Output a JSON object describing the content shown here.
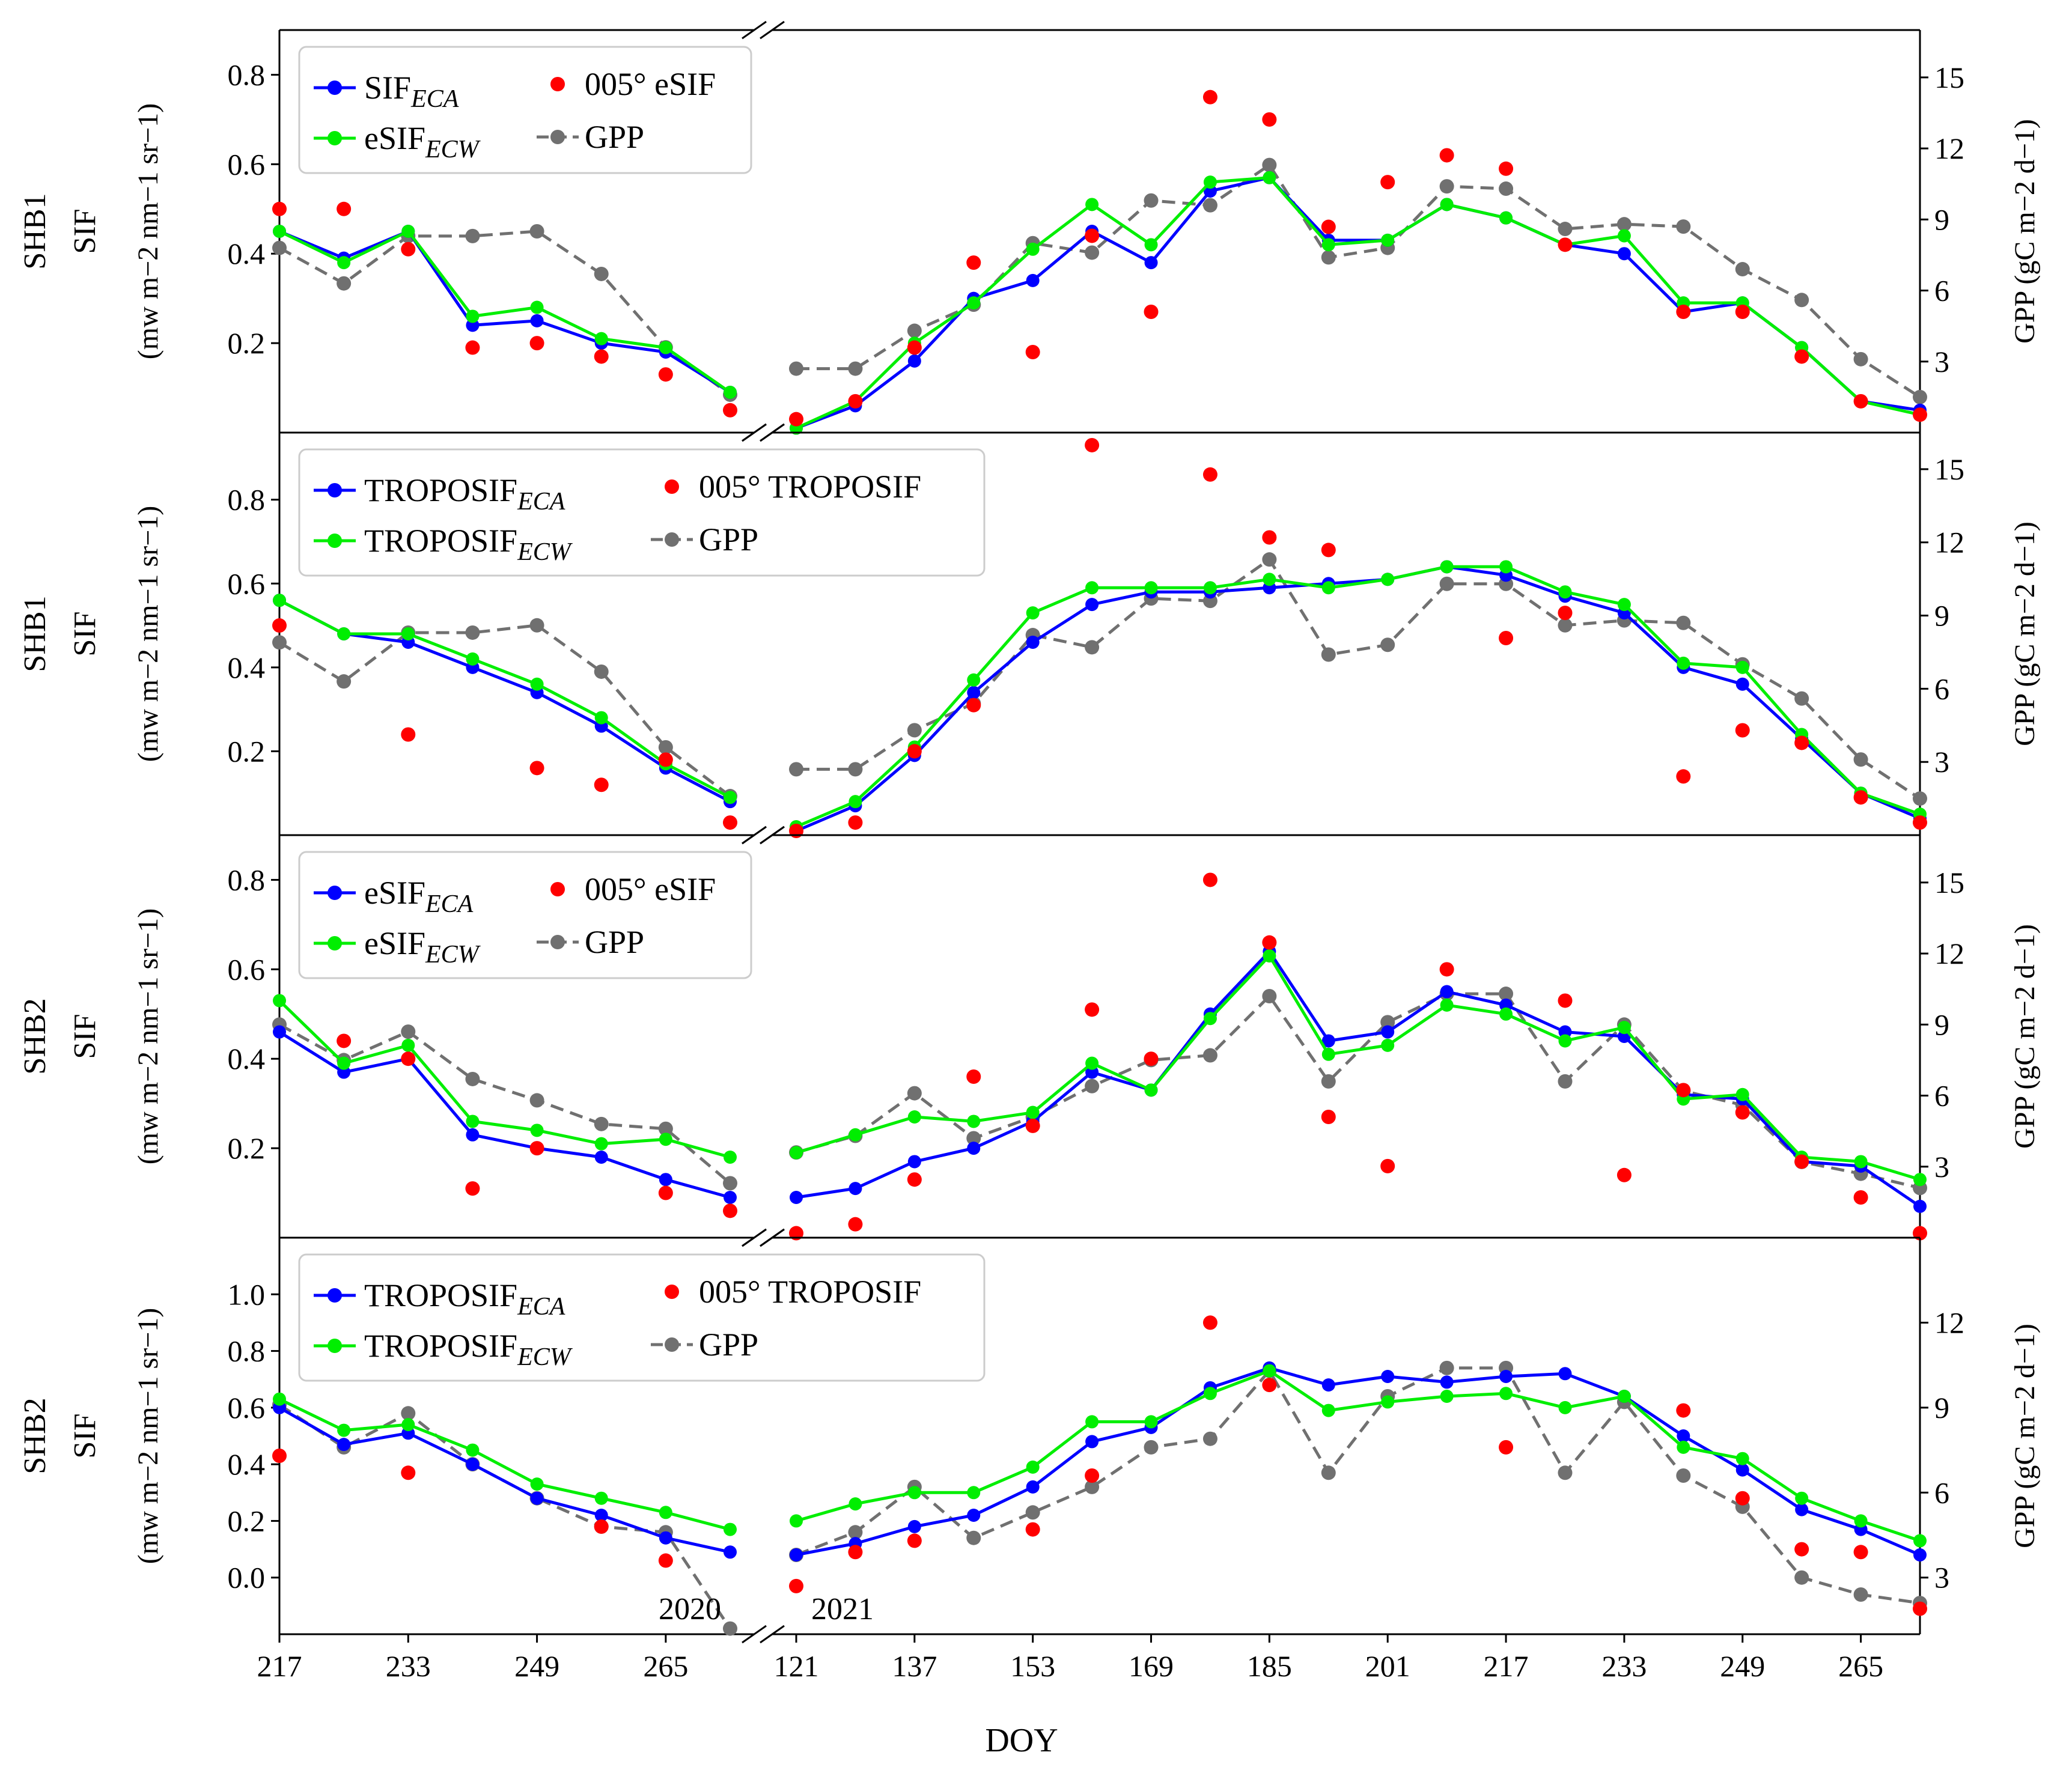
{
  "figure": {
    "x_axis_label": "DOY",
    "break_year_left": "2020",
    "break_year_right": "2021",
    "x_ticks_left": [
      "217",
      "233",
      "249",
      "265"
    ],
    "x_ticks_right": [
      "121",
      "137",
      "153",
      "169",
      "185",
      "201",
      "217",
      "233",
      "249",
      "265"
    ],
    "colors": {
      "eca": "#0000ff",
      "ecw": "#00ee00",
      "ref": "#ff0000",
      "gpp": "#707070"
    }
  },
  "chart_data": [
    {
      "type": "line",
      "panel_label_1": "SHB1",
      "panel_label_2": "SIF",
      "ylabel_left": "(mw m−2 nm−1 sr−1)",
      "ylabel_right": "GPP (gC m−2 d−1)",
      "ylim": [
        0.0,
        0.9
      ],
      "y2lim": [
        0.0,
        17.0
      ],
      "yticks": [
        "0.2",
        "0.4",
        "0.6",
        "0.8"
      ],
      "y2ticks": [
        "3",
        "6",
        "9",
        "12",
        "15"
      ],
      "legend": {
        "eca_base": "SIF",
        "eca_sub": "ECA",
        "ecw_base": "eSIF",
        "ecw_sub": "ECW",
        "ref": "005° eSIF",
        "gpp": "GPP"
      },
      "x_2020": [
        217,
        225,
        233,
        241,
        249,
        257,
        265,
        273
      ],
      "x_2021": [
        121,
        129,
        137,
        145,
        153,
        161,
        169,
        177,
        185,
        193,
        201,
        209,
        217,
        225,
        233,
        241,
        249,
        257,
        265,
        273
      ],
      "series": [
        {
          "name": "SIF ECA",
          "values_2020": [
            0.45,
            0.39,
            0.45,
            0.24,
            0.25,
            0.2,
            0.18,
            0.09
          ],
          "values_2021": [
            0.01,
            0.06,
            0.16,
            0.3,
            0.34,
            0.45,
            0.38,
            0.54,
            0.57,
            0.43,
            0.43,
            0.51,
            0.48,
            0.42,
            0.4,
            0.27,
            0.29,
            0.19,
            0.07,
            0.05
          ]
        },
        {
          "name": "eSIF ECW",
          "values_2020": [
            0.45,
            0.38,
            0.45,
            0.26,
            0.28,
            0.21,
            0.19,
            0.09
          ],
          "values_2021": [
            0.01,
            0.07,
            0.2,
            0.29,
            0.41,
            0.51,
            0.42,
            0.56,
            0.57,
            0.42,
            0.43,
            0.51,
            0.48,
            0.42,
            0.44,
            0.29,
            0.29,
            0.19,
            0.07,
            0.04
          ]
        },
        {
          "name": "005° eSIF",
          "values_2020": [
            0.5,
            0.5,
            0.41,
            0.19,
            0.2,
            0.17,
            0.13,
            0.05
          ],
          "values_2021": [
            0.03,
            0.07,
            0.19,
            0.38,
            0.18,
            0.44,
            0.27,
            0.75,
            0.7,
            0.46,
            0.56,
            0.62,
            0.59,
            0.42,
            null,
            0.27,
            0.27,
            0.17,
            0.07,
            0.04
          ]
        },
        {
          "name": "GPP",
          "values_2020": [
            7.8,
            6.3,
            8.3,
            8.3,
            8.5,
            6.7,
            3.6,
            1.6
          ],
          "values_2021": [
            2.7,
            2.7,
            4.3,
            5.4,
            8.0,
            7.6,
            9.8,
            9.6,
            11.3,
            7.4,
            7.8,
            10.4,
            10.3,
            8.6,
            8.8,
            8.7,
            6.9,
            5.6,
            3.1,
            1.5
          ]
        }
      ]
    },
    {
      "type": "line",
      "panel_label_1": "SHB1",
      "panel_label_2": "SIF",
      "ylabel_left": "(mw m−2 nm−1 sr−1)",
      "ylabel_right": "GPP (gC m−2 d−1)",
      "ylim": [
        0.0,
        0.96
      ],
      "y2lim": [
        0.0,
        16.5
      ],
      "yticks": [
        "0.2",
        "0.4",
        "0.6",
        "0.8"
      ],
      "y2ticks": [
        "3",
        "6",
        "9",
        "12",
        "15"
      ],
      "legend": {
        "eca_base": "TROPOSIF",
        "eca_sub": "ECA",
        "ecw_base": "TROPOSIF",
        "ecw_sub": "ECW",
        "ref": "005° TROPOSIF",
        "gpp": "GPP"
      },
      "x_2020": [
        217,
        225,
        233,
        241,
        249,
        257,
        265,
        273
      ],
      "x_2021": [
        121,
        129,
        137,
        145,
        153,
        161,
        169,
        177,
        185,
        193,
        201,
        209,
        217,
        225,
        233,
        241,
        249,
        257,
        265,
        273
      ],
      "series": [
        {
          "name": "TROPOSIF ECA",
          "values_2020": [
            0.56,
            0.48,
            0.46,
            0.4,
            0.34,
            0.26,
            0.16,
            0.08
          ],
          "values_2021": [
            0.01,
            0.07,
            0.19,
            0.34,
            0.46,
            0.55,
            0.58,
            0.58,
            0.59,
            0.6,
            0.61,
            0.64,
            0.62,
            0.57,
            0.53,
            0.4,
            0.36,
            0.23,
            0.1,
            0.04
          ]
        },
        {
          "name": "TROPOSIF ECW",
          "values_2020": [
            0.56,
            0.48,
            0.48,
            0.42,
            0.36,
            0.28,
            0.17,
            0.09
          ],
          "values_2021": [
            0.02,
            0.08,
            0.21,
            0.37,
            0.53,
            0.59,
            0.59,
            0.59,
            0.61,
            0.59,
            0.61,
            0.64,
            0.64,
            0.58,
            0.55,
            0.41,
            0.4,
            0.24,
            0.1,
            0.05
          ]
        },
        {
          "name": "005° TROPOSIF",
          "values_2020": [
            0.5,
            null,
            0.24,
            null,
            0.16,
            0.12,
            0.18,
            0.03
          ],
          "values_2021": [
            0.01,
            0.03,
            0.2,
            0.31,
            null,
            0.93,
            null,
            0.86,
            0.71,
            0.68,
            null,
            null,
            0.47,
            0.53,
            null,
            0.14,
            0.25,
            0.22,
            0.09,
            0.03
          ]
        },
        {
          "name": "GPP",
          "values_2020": [
            7.9,
            6.3,
            8.3,
            8.3,
            8.6,
            6.7,
            3.6,
            1.6
          ],
          "values_2021": [
            2.7,
            2.7,
            4.3,
            5.4,
            8.2,
            7.7,
            9.7,
            9.6,
            11.3,
            7.4,
            7.8,
            10.3,
            10.3,
            8.6,
            8.8,
            8.7,
            7.0,
            5.6,
            3.1,
            1.5
          ]
        }
      ]
    },
    {
      "type": "line",
      "panel_label_1": "SHB2",
      "panel_label_2": "SIF",
      "ylabel_left": "(mw m−2 nm−1 sr−1)",
      "ylabel_right": "GPP (gC m−2 d−1)",
      "ylim": [
        0.0,
        0.9
      ],
      "y2lim": [
        0.0,
        17.0
      ],
      "yticks": [
        "0.2",
        "0.4",
        "0.6",
        "0.8"
      ],
      "y2ticks": [
        "3",
        "6",
        "9",
        "12",
        "15"
      ],
      "legend": {
        "eca_base": "eSIF",
        "eca_sub": "ECA",
        "ecw_base": "eSIF",
        "ecw_sub": "ECW",
        "ref": "005° eSIF",
        "gpp": "GPP"
      },
      "x_2020": [
        217,
        225,
        233,
        241,
        249,
        257,
        265,
        273
      ],
      "x_2021": [
        121,
        129,
        137,
        145,
        153,
        161,
        169,
        177,
        185,
        193,
        201,
        209,
        217,
        225,
        233,
        241,
        249,
        257,
        265,
        273
      ],
      "series": [
        {
          "name": "eSIF ECA",
          "values_2020": [
            0.46,
            0.37,
            0.4,
            0.23,
            0.2,
            0.18,
            0.13,
            0.09
          ],
          "values_2021": [
            0.09,
            0.11,
            0.17,
            0.2,
            0.26,
            0.37,
            0.33,
            0.5,
            0.64,
            0.44,
            0.46,
            0.55,
            0.52,
            0.46,
            0.45,
            0.32,
            0.31,
            0.17,
            0.16,
            0.07
          ]
        },
        {
          "name": "eSIF ECW",
          "values_2020": [
            0.53,
            0.39,
            0.43,
            0.26,
            0.24,
            0.21,
            0.22,
            0.18
          ],
          "values_2021": [
            0.19,
            0.23,
            0.27,
            0.26,
            0.28,
            0.39,
            0.33,
            0.49,
            0.63,
            0.41,
            0.43,
            0.52,
            0.5,
            0.44,
            0.47,
            0.31,
            0.32,
            0.18,
            0.17,
            0.13
          ]
        },
        {
          "name": "005° eSIF",
          "values_2020": [
            null,
            0.44,
            0.4,
            0.11,
            0.2,
            null,
            0.1,
            0.06
          ],
          "values_2021": [
            0.01,
            0.03,
            0.13,
            0.36,
            0.25,
            0.51,
            0.4,
            0.8,
            0.66,
            0.27,
            0.16,
            0.6,
            null,
            0.53,
            0.14,
            0.33,
            0.28,
            0.17,
            0.09,
            0.01
          ]
        },
        {
          "name": "GPP",
          "values_2020": [
            9.0,
            7.5,
            8.7,
            6.7,
            5.8,
            4.8,
            4.6,
            2.3
          ],
          "values_2021": [
            3.6,
            4.3,
            6.1,
            4.2,
            5.1,
            6.4,
            7.5,
            7.7,
            10.2,
            6.6,
            9.1,
            10.3,
            10.3,
            6.6,
            9.0,
            6.2,
            5.6,
            3.2,
            2.7,
            2.1
          ]
        }
      ]
    },
    {
      "type": "line",
      "panel_label_1": "SHB2",
      "panel_label_2": "SIF",
      "ylabel_left": "(mw m−2 nm−1 sr−1)",
      "ylabel_right": "GPP (gC m−2 d−1)",
      "ylim": [
        -0.2,
        1.2
      ],
      "y2lim": [
        1.0,
        15.0
      ],
      "yticks": [
        "0.0",
        "0.2",
        "0.4",
        "0.6",
        "0.8",
        "1.0"
      ],
      "y2ticks": [
        "3",
        "6",
        "9",
        "12"
      ],
      "legend": {
        "eca_base": "TROPOSIF",
        "eca_sub": "ECA",
        "ecw_base": "TROPOSIF",
        "ecw_sub": "ECW",
        "ref": "005° TROPOSIF",
        "gpp": "GPP"
      },
      "x_2020": [
        217,
        225,
        233,
        241,
        249,
        257,
        265,
        273
      ],
      "x_2021": [
        121,
        129,
        137,
        145,
        153,
        161,
        169,
        177,
        185,
        193,
        201,
        209,
        217,
        225,
        233,
        241,
        249,
        257,
        265,
        273
      ],
      "series": [
        {
          "name": "TROPOSIF ECA",
          "values_2020": [
            0.6,
            0.47,
            0.51,
            0.4,
            0.28,
            0.22,
            0.14,
            0.09
          ],
          "values_2021": [
            0.08,
            0.12,
            0.18,
            0.22,
            0.32,
            0.48,
            0.53,
            0.67,
            0.74,
            0.68,
            0.71,
            0.69,
            0.71,
            0.72,
            0.64,
            0.5,
            0.38,
            0.24,
            0.17,
            0.08
          ]
        },
        {
          "name": "TROPOSIF ECW",
          "values_2020": [
            0.63,
            0.52,
            0.54,
            0.45,
            0.33,
            0.28,
            0.23,
            0.17
          ],
          "values_2021": [
            0.2,
            0.26,
            0.3,
            0.3,
            0.39,
            0.55,
            0.55,
            0.65,
            0.73,
            0.59,
            0.62,
            0.64,
            0.65,
            0.6,
            0.64,
            0.46,
            0.42,
            0.28,
            0.2,
            0.13
          ]
        },
        {
          "name": "005° TROPOSIF",
          "values_2020": [
            0.43,
            null,
            0.37,
            null,
            null,
            0.18,
            0.06,
            null
          ],
          "values_2021": [
            -0.03,
            0.09,
            0.13,
            null,
            0.17,
            0.36,
            null,
            0.9,
            0.68,
            null,
            null,
            null,
            0.46,
            null,
            null,
            0.59,
            0.28,
            0.1,
            0.09,
            -0.11
          ]
        },
        {
          "name": "GPP",
          "values_2020": [
            9.1,
            7.6,
            8.8,
            7.0,
            5.8,
            4.8,
            4.6,
            1.2
          ],
          "values_2021": [
            3.8,
            4.6,
            6.2,
            4.4,
            5.3,
            6.2,
            7.6,
            7.9,
            10.3,
            6.7,
            9.4,
            10.4,
            10.4,
            6.7,
            9.2,
            6.6,
            5.5,
            3.0,
            2.4,
            2.1
          ]
        }
      ]
    }
  ]
}
